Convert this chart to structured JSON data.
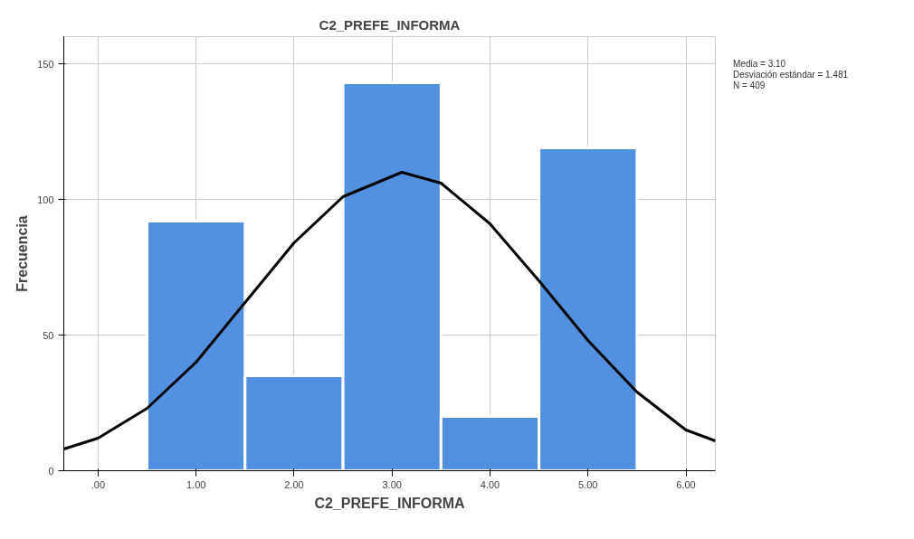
{
  "chart_data": {
    "type": "histogram",
    "title": "C2_PREFE_INFORMA",
    "xlabel": "C2_PREFE_INFORMA",
    "ylabel": "Frecuencia",
    "bins": [
      0.5,
      1.5,
      2.5,
      3.5,
      4.5,
      5.5
    ],
    "values": [
      92,
      35,
      143,
      20,
      119
    ],
    "color": "#5291e0",
    "series": [
      {
        "type": "line",
        "color": "#000000",
        "x": [
          -0.35,
          0,
          0.5,
          1,
          1.5,
          2,
          2.5,
          3.1,
          3.5,
          4,
          4.5,
          5,
          5.5,
          6,
          6.3
        ],
        "values": [
          8,
          12,
          23,
          40,
          62,
          84,
          101,
          110,
          106,
          91,
          70,
          48,
          29,
          15,
          11
        ]
      }
    ],
    "xlim": [
      -0.35,
      6.3
    ],
    "xticks": [
      {
        "value": 0,
        "label": ".00"
      },
      {
        "value": 1,
        "label": "1.00"
      },
      {
        "value": 2,
        "label": "2.00"
      },
      {
        "value": 3,
        "label": "3.00"
      },
      {
        "value": 4,
        "label": "4.00"
      },
      {
        "value": 5,
        "label": "5.00"
      },
      {
        "value": 6,
        "label": "6.00"
      }
    ],
    "ylim": [
      0,
      160
    ],
    "yticks": [
      0,
      50,
      100,
      150
    ],
    "grid": true,
    "annotations": [
      "Media = 3.10",
      "Desviación estándar = 1.481",
      "N = 409"
    ]
  }
}
